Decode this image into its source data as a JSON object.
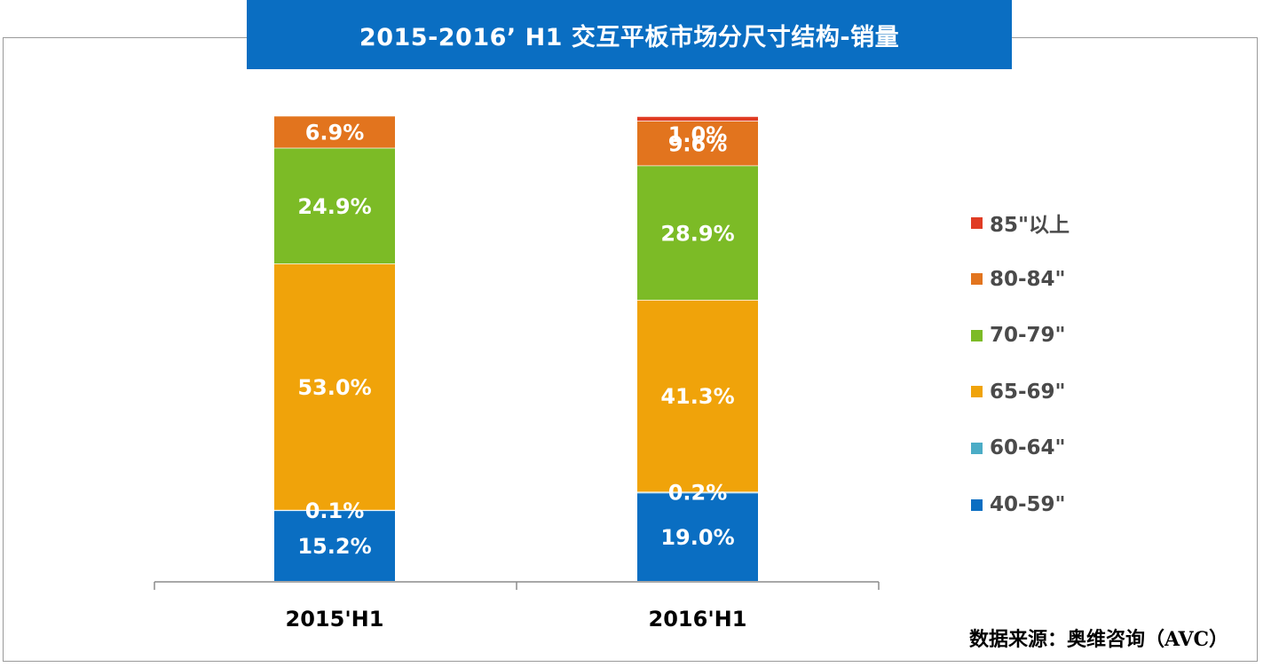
{
  "colors": {
    "title_bg": "#0a6ec2",
    "title_text": "#ffffff",
    "axis": "#8c8c8c",
    "frame": "#9a9a9a"
  },
  "source": "数据来源：奥维咨询（AVC）",
  "chart_data": {
    "type": "bar",
    "stacked": true,
    "title": "2015-2016’ H1 交互平板市场分尺寸结构-销量",
    "xlabel": "",
    "ylabel": "",
    "ylim": [
      0,
      100
    ],
    "grid": false,
    "legend_position": "right",
    "categories": [
      "2015'H1",
      "2016'H1"
    ],
    "series": [
      {
        "name": "40-59\"",
        "color": "#0a6ec2",
        "values": [
          15.2,
          19.0
        ],
        "labels": [
          "15.2%",
          "19.0%"
        ]
      },
      {
        "name": "60-64\"",
        "color": "#4bacc6",
        "values": [
          0.1,
          0.2
        ],
        "labels": [
          "0.1%",
          "0.2%"
        ]
      },
      {
        "name": "65-69\"",
        "color": "#f0a30a",
        "values": [
          53.0,
          41.3
        ],
        "labels": [
          "53.0%",
          "41.3%"
        ]
      },
      {
        "name": "70-79\"",
        "color": "#7cbb26",
        "values": [
          24.9,
          28.9
        ],
        "labels": [
          "24.9%",
          "28.9%"
        ]
      },
      {
        "name": "80-84\"",
        "color": "#e2741e",
        "values": [
          6.9,
          9.6
        ],
        "labels": [
          "6.9%",
          "9.6%"
        ]
      },
      {
        "name": "85\"以上",
        "color": "#e03c24",
        "values": [
          0.0,
          1.0
        ],
        "labels": [
          "",
          "1.0%"
        ]
      }
    ]
  }
}
